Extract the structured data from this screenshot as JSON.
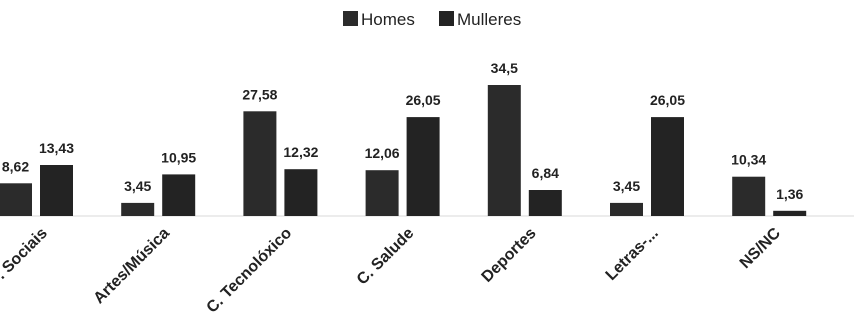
{
  "chart_data": {
    "type": "bar",
    "categories": [
      "C. Sociais",
      "Artes/Música",
      "C. Tecnolóxico",
      "C. Salude",
      "Deportes",
      "Letras-...",
      "NS/NC"
    ],
    "series": [
      {
        "name": "Homes",
        "values": [
          8.62,
          3.45,
          27.58,
          12.06,
          34.5,
          3.45,
          10.34
        ],
        "labels": [
          "8,62",
          "3,45",
          "27,58",
          "12,06",
          "34,5",
          "3,45",
          "10,34"
        ],
        "color": "#2b2b2b"
      },
      {
        "name": "Mulleres",
        "values": [
          13.43,
          10.95,
          12.32,
          26.05,
          6.84,
          26.05,
          1.36
        ],
        "labels": [
          "13,43",
          "10,95",
          "12,32",
          "26,05",
          "6,84",
          "26,05",
          "1,36"
        ],
        "color": "#232323"
      }
    ],
    "title": "",
    "xlabel": "",
    "ylabel": "",
    "ylim": [
      0,
      36
    ],
    "grid": false,
    "legend_position": "top-center"
  }
}
